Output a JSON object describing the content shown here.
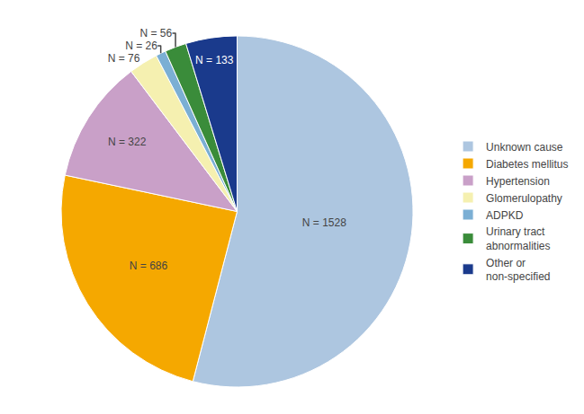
{
  "chart_data": {
    "type": "pie",
    "categories": [
      "Unknown cause",
      "Diabetes mellitus",
      "Hypertension",
      "Glomerulopathy",
      "ADPKD",
      "Urinary tract\nabnormalities",
      "Other or\nnon-specified"
    ],
    "values": [
      1528,
      686,
      322,
      76,
      26,
      56,
      133
    ],
    "value_labels": [
      "N = 1528",
      "N = 686",
      "N = 322",
      "N = 76",
      "N = 26",
      "N = 56",
      "N = 133"
    ],
    "colors": [
      "#adc6e0",
      "#f5a800",
      "#c9a0c8",
      "#f5f0b0",
      "#7bafd4",
      "#3a8c3a",
      "#1a3a8c"
    ],
    "data_labels": true,
    "legend": "right"
  }
}
